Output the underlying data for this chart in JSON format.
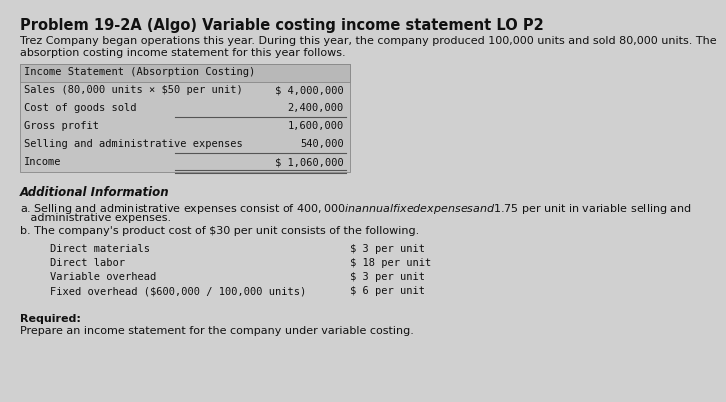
{
  "title": "Problem 19-2A (Algo) Variable costing income statement LO P2",
  "intro_line1": "Trez Company began operations this year. During this year, the company produced 100,000 units and sold 80,000 units. The",
  "intro_line2": "absorption costing income statement for this year follows.",
  "table_header": "Income Statement (Absorption Costing)",
  "table_rows": [
    [
      "Sales (80,000 units × $50 per unit)",
      "$ 4,000,000"
    ],
    [
      "Cost of goods sold",
      "2,400,000"
    ],
    [
      "Gross profit",
      "1,600,000"
    ],
    [
      "Selling and administrative expenses",
      "540,000"
    ],
    [
      "Income",
      "$ 1,060,000"
    ]
  ],
  "additional_header": "Additional Information",
  "additional_a_line1": "a. Selling and administrative expenses consist of $400,000 in annual fixed expenses and $1.75 per unit in variable selling and",
  "additional_a_line2": "   administrative expenses.",
  "additional_b": "b. The company's product cost of $30 per unit consists of the following.",
  "cost_items": [
    [
      "Direct materials",
      "$ 3 per unit"
    ],
    [
      "Direct labor",
      "$ 18 per unit"
    ],
    [
      "Variable overhead",
      "$ 3 per unit"
    ],
    [
      "Fixed overhead ($600,000 / 100,000 units)",
      "$ 6 per unit"
    ]
  ],
  "required_header": "Required:",
  "required_text": "Prepare an income statement for the company under variable costing.",
  "bg_color": "#d0d0d0",
  "table_bg_color": "#c4c4c4",
  "table_header_bg": "#b8b8b8",
  "text_color": "#111111",
  "title_fontsize": 10.5,
  "body_fontsize": 8.0,
  "mono_fontsize": 7.5
}
